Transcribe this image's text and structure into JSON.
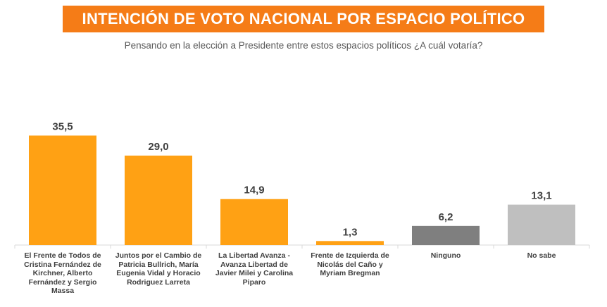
{
  "header": {
    "title": "INTENCIÓN DE VOTO NACIONAL POR ESPACIO POLÍTICO",
    "subtitle": "Pensando en la elección a Presidente entre estos espacios políticos ¿A cuál votaría?"
  },
  "chart_data": {
    "type": "bar",
    "title": "INTENCIÓN DE VOTO NACIONAL POR ESPACIO POLÍTICO",
    "subtitle": "Pensando en la elección a Presidente entre estos espacios políticos ¿A cuál votaría?",
    "categories": [
      "El Frente de Todos de Cristina Fernández de Kirchner, Alberto Fernández y Sergio Massa",
      "Juntos por el Cambio de Patricia Bullrich, María Eugenia Vidal y Horacio Rodriguez Larreta",
      "La Libertad Avanza - Avanza Libertad de Javier Milei y Carolina Piparo",
      "Frente de Izquierda de Nicolás del Caño y Myriam Bregman",
      "Ninguno",
      "No sabe"
    ],
    "values": [
      35.5,
      29.0,
      14.9,
      1.3,
      6.2,
      13.1
    ],
    "value_labels": [
      "35,5",
      "29,0",
      "14,9",
      "1,3",
      "6,2",
      "13,1"
    ],
    "colors": [
      "#ffa114",
      "#ffa114",
      "#ffa114",
      "#ffa114",
      "#7f7f7f",
      "#bfbfbf"
    ],
    "xlabel": "",
    "ylabel": "",
    "ylim": [
      0,
      40
    ],
    "grid": false,
    "legend": "none"
  }
}
